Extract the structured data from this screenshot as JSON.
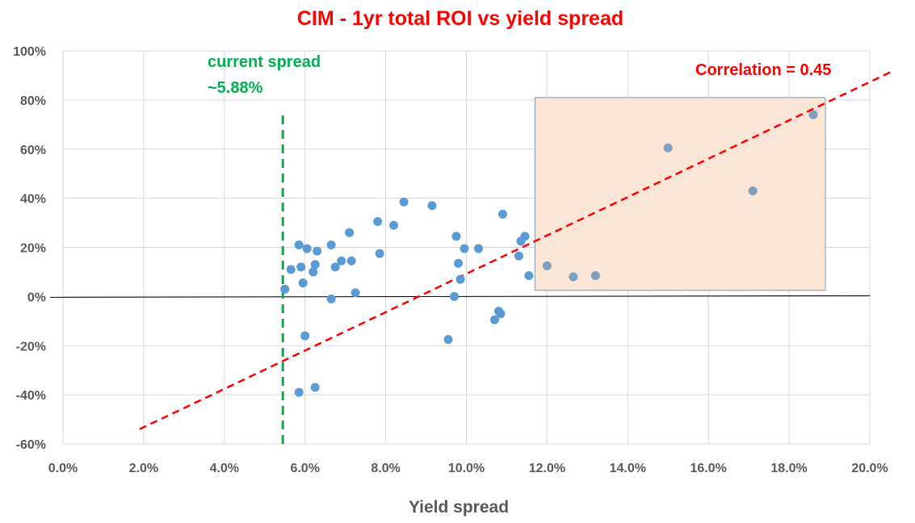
{
  "chart_data": {
    "type": "scatter",
    "title": "CIM - 1yr total ROI vs yield spread",
    "xlabel": "Yield spread",
    "ylabel": "",
    "xlim": [
      0,
      20
    ],
    "ylim": [
      -60,
      100
    ],
    "x_tick_values": [
      0,
      2,
      4,
      6,
      8,
      10,
      12,
      14,
      16,
      18,
      20
    ],
    "x_tick_labels": [
      "0.0%",
      "2.0%",
      "4.0%",
      "6.0%",
      "8.0%",
      "10.0%",
      "12.0%",
      "14.0%",
      "16.0%",
      "18.0%",
      "20.0%"
    ],
    "y_tick_values": [
      100,
      80,
      60,
      40,
      20,
      0,
      -20,
      -40,
      -60
    ],
    "y_tick_labels": [
      "100%",
      "80%",
      "60%",
      "40%",
      "20%",
      "0%",
      "-20%",
      "-40%",
      "-60%"
    ],
    "grid": true,
    "colors": {
      "title": "#ff0000",
      "points": "#5b9bd5",
      "highlighted_points": "#7f9fbf",
      "trendline": "#ff0000",
      "current_spread_line": "#00b050",
      "highlight_box_fill": "#fbe5d6",
      "highlight_box_stroke": "#8497b0",
      "grid": "#d9d9d9",
      "zero_line": "#000000"
    },
    "points": [
      {
        "x": 5.5,
        "y": 3
      },
      {
        "x": 5.65,
        "y": 11
      },
      {
        "x": 5.85,
        "y": 21
      },
      {
        "x": 5.9,
        "y": 12
      },
      {
        "x": 5.95,
        "y": 5.5
      },
      {
        "x": 6.0,
        "y": -16
      },
      {
        "x": 6.05,
        "y": 19.5
      },
      {
        "x": 5.85,
        "y": -39
      },
      {
        "x": 6.2,
        "y": 10
      },
      {
        "x": 6.25,
        "y": 13
      },
      {
        "x": 6.3,
        "y": 18.5
      },
      {
        "x": 6.25,
        "y": -37
      },
      {
        "x": 6.65,
        "y": -1
      },
      {
        "x": 6.65,
        "y": 21
      },
      {
        "x": 6.75,
        "y": 12
      },
      {
        "x": 6.9,
        "y": 14.5
      },
      {
        "x": 7.1,
        "y": 26
      },
      {
        "x": 7.15,
        "y": 14.5
      },
      {
        "x": 7.25,
        "y": 1.5
      },
      {
        "x": 7.8,
        "y": 30.5
      },
      {
        "x": 7.85,
        "y": 17.5
      },
      {
        "x": 8.2,
        "y": 29
      },
      {
        "x": 8.45,
        "y": 38.5
      },
      {
        "x": 9.15,
        "y": 37
      },
      {
        "x": 9.55,
        "y": -17.5
      },
      {
        "x": 9.7,
        "y": 0
      },
      {
        "x": 9.75,
        "y": 24.5
      },
      {
        "x": 9.8,
        "y": 13.5
      },
      {
        "x": 9.85,
        "y": 7
      },
      {
        "x": 9.95,
        "y": 19.5
      },
      {
        "x": 10.3,
        "y": 19.5
      },
      {
        "x": 10.7,
        "y": -9.5
      },
      {
        "x": 10.8,
        "y": -6
      },
      {
        "x": 10.85,
        "y": -7
      },
      {
        "x": 10.9,
        "y": 33.5
      },
      {
        "x": 11.3,
        "y": 16.5
      },
      {
        "x": 11.35,
        "y": 22.5
      },
      {
        "x": 11.45,
        "y": 24.5
      },
      {
        "x": 11.55,
        "y": 8.5
      }
    ],
    "highlighted_points": [
      {
        "x": 12.0,
        "y": 12.5
      },
      {
        "x": 12.65,
        "y": 8
      },
      {
        "x": 13.2,
        "y": 8.5
      },
      {
        "x": 15.0,
        "y": 60.5
      },
      {
        "x": 17.1,
        "y": 43
      },
      {
        "x": 18.6,
        "y": 74
      }
    ],
    "trendline": {
      "x1": 1.9,
      "y1": -54,
      "x2": 20.6,
      "y2": 92
    },
    "current_spread_line": {
      "x": 5.45,
      "y_from": -60,
      "y_to": 76
    },
    "highlight_box": {
      "x_from": 11.7,
      "x_to": 18.9,
      "y_from": 2.5,
      "y_to": 81
    },
    "annotations": {
      "current_spread_line1": "current spread",
      "current_spread_line2": "~5.88%",
      "correlation": "Correlation = 0.45"
    }
  }
}
